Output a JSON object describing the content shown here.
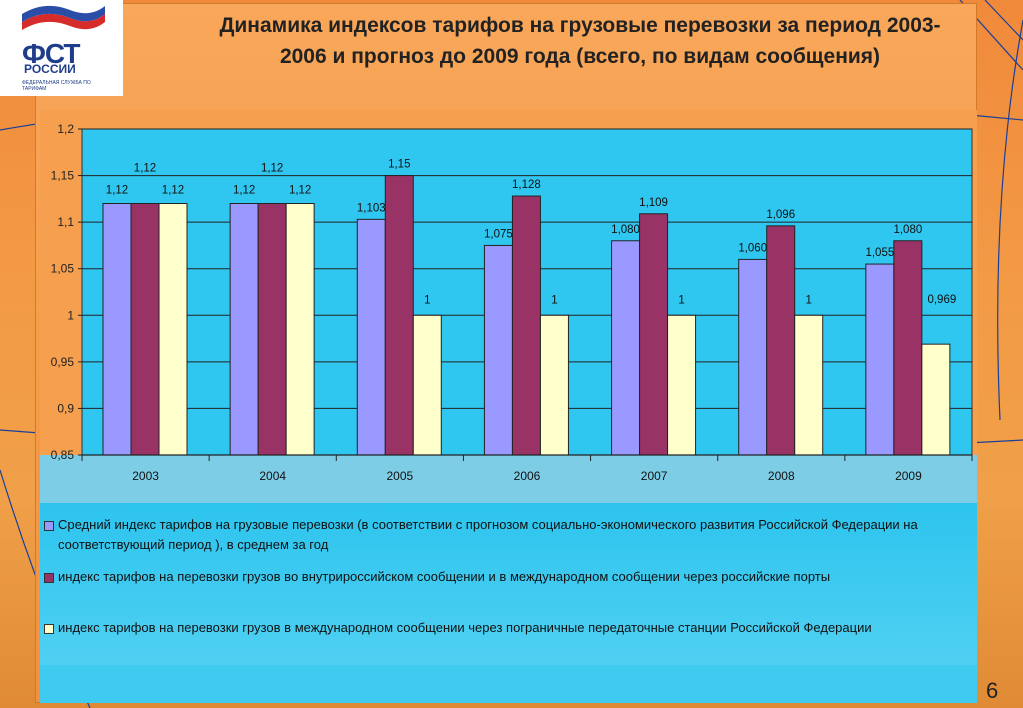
{
  "slide": {
    "title": "Динамика индексов тарифов на грузовые перевозки за период 2003-2006 и прогноз до 2009 года (всего, по видам сообщения)",
    "page_number": "6"
  },
  "logo": {
    "abbr": "ФСТ",
    "name": "РОССИИ",
    "tagline": "ФЕДЕРАЛЬНАЯ СЛУЖБА ПО ТАРИФАМ"
  },
  "colors": {
    "series1": "#9999ff",
    "series2": "#993366",
    "series3": "#ffffcc",
    "plot_bg": "#2fc6f0",
    "grid": "#000000"
  },
  "chart_data": {
    "type": "bar",
    "title": "Динамика индексов тарифов на грузовые перевозки за период 2003-2006 и прогноз до 2009 года (всего, по видам сообщения)",
    "categories": [
      "2003",
      "2004",
      "2005",
      "2006",
      "2007",
      "2008",
      "2009"
    ],
    "ylim": [
      0.85,
      1.2
    ],
    "yticks": [
      0.85,
      0.9,
      0.95,
      1,
      1.05,
      1.1,
      1.15,
      1.2
    ],
    "ytick_labels": [
      "0,85",
      "0,9",
      "0,95",
      "1",
      "1,05",
      "1,1",
      "1,15",
      "1,2"
    ],
    "grid": true,
    "legend_position": "bottom",
    "series": [
      {
        "name": "Средний индекс тарифов на грузовые перевозки (в соответствии с  прогнозом социально-экономического развития Российской Федерации на соответствующий период ),  в среднем за год",
        "values": [
          1.12,
          1.12,
          1.103,
          1.075,
          1.08,
          1.06,
          1.055
        ],
        "labels": [
          "1,12",
          "1,12",
          "1,103",
          "1,075",
          "1,080",
          "1,060",
          "1,055"
        ]
      },
      {
        "name": "индекс тарифов на перевозки грузов во внутрироссийском сообщении и в международном сообщении через российские порты",
        "values": [
          1.12,
          1.12,
          1.15,
          1.128,
          1.109,
          1.096,
          1.08
        ],
        "labels": [
          "1,12",
          "1,12",
          "1,15",
          "1,128",
          "1,109",
          "1,096",
          "1,080"
        ]
      },
      {
        "name": "индекс тарифов на перевозки грузов в международном сообщении через пограничные передаточные станции Российской Федерации",
        "values": [
          1.12,
          1.12,
          1,
          1,
          1,
          1,
          0.969
        ],
        "labels": [
          "1,12",
          "1,12",
          "1",
          "1",
          "1",
          "1",
          "0,969"
        ]
      }
    ]
  }
}
